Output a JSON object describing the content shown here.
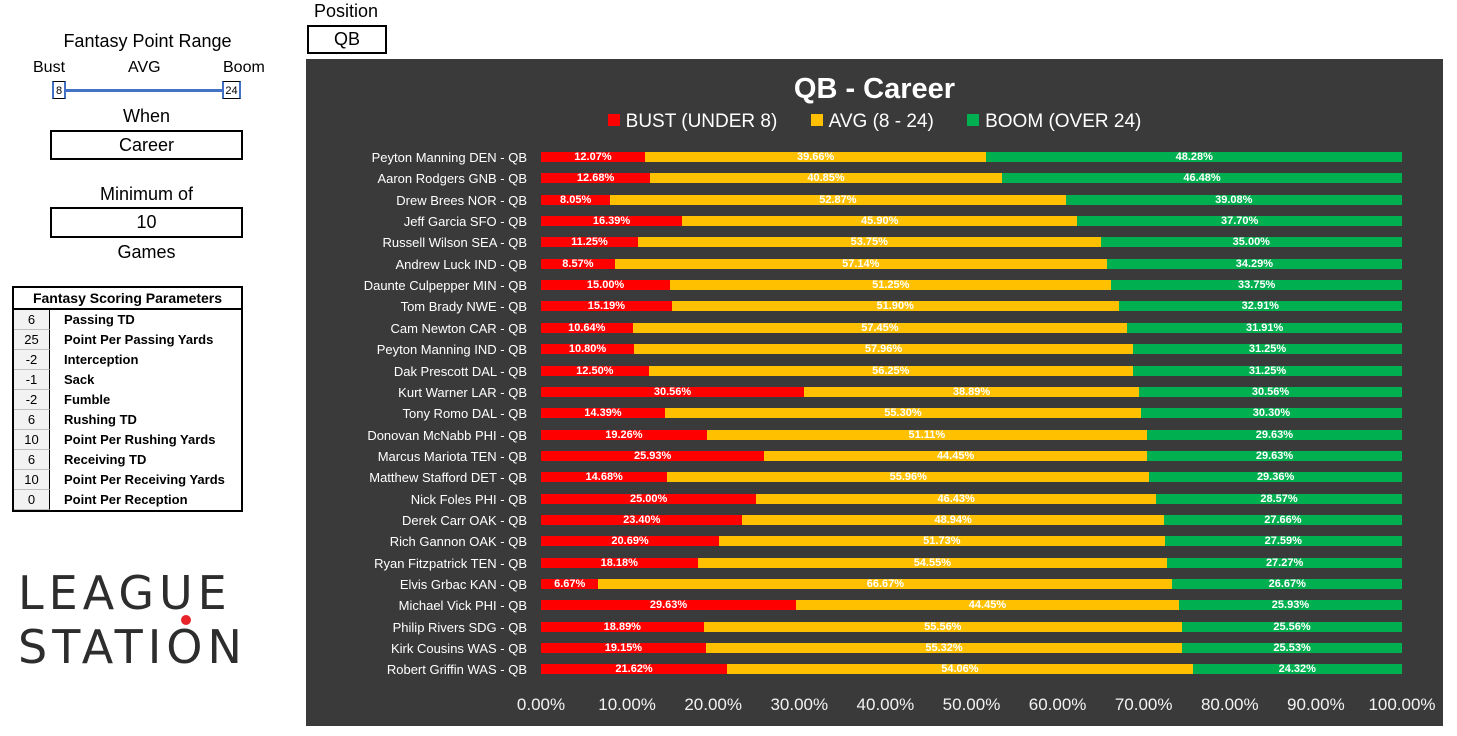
{
  "position": {
    "label": "Position",
    "value": "QB"
  },
  "range": {
    "title": "Fantasy Point Range",
    "bust_label": "Bust",
    "avg_label": "AVG",
    "boom_label": "Boom",
    "low": "8",
    "high": "24"
  },
  "when": {
    "label": "When",
    "value": "Career"
  },
  "minimum": {
    "label": "Minimum of",
    "value": "10",
    "unit": "Games"
  },
  "params": {
    "title": "Fantasy Scoring Parameters",
    "rows": [
      {
        "value": "6",
        "name": "Passing TD"
      },
      {
        "value": "25",
        "name": "Point Per Passing Yards"
      },
      {
        "value": "-2",
        "name": "Interception"
      },
      {
        "value": "-1",
        "name": "Sack"
      },
      {
        "value": "-2",
        "name": "Fumble"
      },
      {
        "value": "6",
        "name": "Rushing TD"
      },
      {
        "value": "10",
        "name": "Point Per Rushing Yards"
      },
      {
        "value": "6",
        "name": "Receiving TD"
      },
      {
        "value": "10",
        "name": "Point Per Receiving Yards"
      },
      {
        "value": "0",
        "name": "Point Per Reception"
      }
    ]
  },
  "logo": {
    "line1": "LEAGUE",
    "line2": "STATION"
  },
  "colors": {
    "bust": "#ff0000",
    "avg": "#ffc000",
    "boom": "#00b050",
    "chart_bg": "#3a3a3a",
    "slider": "#4472c4",
    "logo_dot": "#e8232a"
  },
  "chart_data": {
    "type": "bar",
    "orientation": "horizontal",
    "stacked": "percent",
    "title": "QB - Career",
    "xlim": [
      0,
      100
    ],
    "x_ticks": [
      "0.00%",
      "10.00%",
      "20.00%",
      "30.00%",
      "40.00%",
      "50.00%",
      "60.00%",
      "70.00%",
      "80.00%",
      "90.00%",
      "100.00%"
    ],
    "legend_position": "top",
    "categories": [
      "Peyton Manning DEN - QB",
      "Aaron Rodgers GNB - QB",
      "Drew Brees NOR - QB",
      "Jeff Garcia SFO - QB",
      "Russell Wilson SEA - QB",
      "Andrew Luck IND - QB",
      "Daunte Culpepper MIN - QB",
      "Tom Brady NWE - QB",
      "Cam Newton CAR - QB",
      "Peyton Manning IND - QB",
      "Dak Prescott DAL - QB",
      "Kurt Warner LAR - QB",
      "Tony Romo DAL - QB",
      "Donovan McNabb PHI - QB",
      "Marcus Mariota TEN - QB",
      "Matthew Stafford DET - QB",
      "Nick Foles PHI - QB",
      "Derek Carr OAK - QB",
      "Rich Gannon OAK - QB",
      "Ryan Fitzpatrick TEN - QB",
      "Elvis Grbac KAN - QB",
      "Michael Vick PHI - QB",
      "Philip Rivers SDG - QB",
      "Kirk Cousins WAS - QB",
      "Robert Griffin WAS - QB"
    ],
    "series": [
      {
        "name": "BUST (UNDER 8)",
        "key": "bust",
        "values": [
          12.07,
          12.68,
          8.05,
          16.39,
          11.25,
          8.57,
          15.0,
          15.19,
          10.64,
          10.8,
          12.5,
          30.56,
          14.39,
          19.26,
          25.93,
          14.68,
          25.0,
          23.4,
          20.69,
          18.18,
          6.67,
          29.63,
          18.89,
          19.15,
          21.62
        ]
      },
      {
        "name": "AVG (8 - 24)",
        "key": "avg",
        "values": [
          39.66,
          40.85,
          52.87,
          45.9,
          53.75,
          57.14,
          51.25,
          51.9,
          57.45,
          57.96,
          56.25,
          38.89,
          55.3,
          51.11,
          44.45,
          55.96,
          46.43,
          48.94,
          51.73,
          54.55,
          66.67,
          44.45,
          55.56,
          55.32,
          54.06
        ]
      },
      {
        "name": "BOOM (OVER 24)",
        "key": "boom",
        "values": [
          48.28,
          46.48,
          39.08,
          37.7,
          35.0,
          34.29,
          33.75,
          32.91,
          31.91,
          31.25,
          31.25,
          30.56,
          30.3,
          29.63,
          29.63,
          29.36,
          28.57,
          27.66,
          27.59,
          27.27,
          26.67,
          25.93,
          25.56,
          25.53,
          24.32
        ]
      }
    ]
  }
}
